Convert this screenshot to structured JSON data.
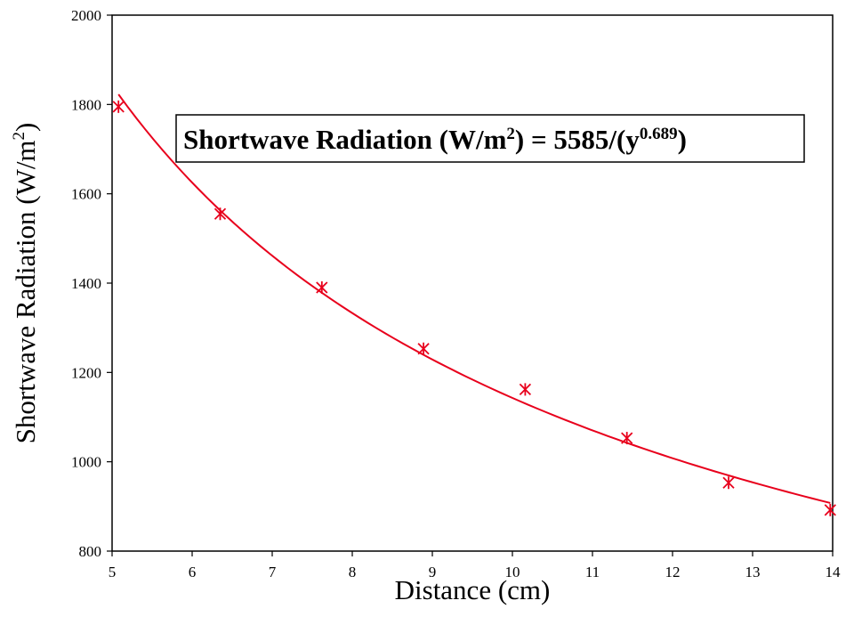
{
  "chart_data": {
    "type": "scatter",
    "title": "",
    "xlabel": "Distance (cm)",
    "ylabel": {
      "main": "Shortwave Radiation (W/m",
      "sup": "2",
      "end": ")"
    },
    "xlim": [
      5,
      14
    ],
    "ylim": [
      800,
      2000
    ],
    "xticks": [
      5,
      6,
      7,
      8,
      9,
      10,
      11,
      12,
      13,
      14
    ],
    "yticks": [
      800,
      1000,
      1200,
      1400,
      1600,
      1800,
      2000
    ],
    "grid": false,
    "legend": "none",
    "series": [
      {
        "marker": "asterisk",
        "color": "#e8001c",
        "x": [
          5.08,
          6.35,
          7.62,
          8.89,
          10.16,
          11.43,
          12.7,
          13.97
        ],
        "y": [
          1795,
          1555,
          1390,
          1253,
          1162,
          1053,
          953,
          892
        ]
      }
    ],
    "fit": {
      "color": "#e8001c",
      "coefficient": 5585,
      "exponent": 0.689,
      "x_range": [
        5.08,
        13.97
      ]
    },
    "annotation": {
      "part1": "Shortwave Radiation (W/m",
      "sup1": "2",
      "part2": ") = 5585/(y",
      "sup2": "0.689",
      "part3": ")"
    }
  }
}
